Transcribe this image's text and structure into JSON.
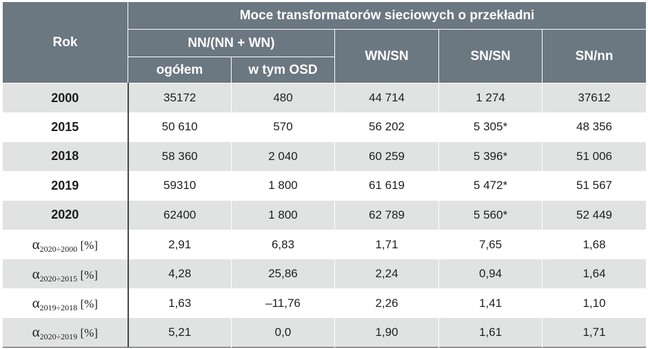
{
  "header": {
    "rok": "Rok",
    "main_title": "Moce transformatorów sieciowych o przekładni",
    "group_nn": "NN/(NN + WN)",
    "ogolem": "ogółem",
    "w_tym_osd": "w tym OSD",
    "wn_sn": "WN/SN",
    "sn_sn": "SN/SN",
    "sn_nn": "SN/nn"
  },
  "rows": [
    {
      "label": "2000",
      "ogolem": "35172",
      "osd": "480",
      "wn_sn": "44 714",
      "sn_sn": "1 274",
      "sn_nn": "37612"
    },
    {
      "label": "2015",
      "ogolem": "50 610",
      "osd": "570",
      "wn_sn": "56 202",
      "sn_sn": "5 305*",
      "sn_nn": "48 356"
    },
    {
      "label": "2018",
      "ogolem": "58 360",
      "osd": "2 040",
      "wn_sn": "60 259",
      "sn_sn": "5 396*",
      "sn_nn": "51 006"
    },
    {
      "label": "2019",
      "ogolem": "59310",
      "osd": "1 800",
      "wn_sn": "61 619",
      "sn_sn": "5 472*",
      "sn_nn": "51 567"
    },
    {
      "label": "2020",
      "ogolem": "62400",
      "osd": "1 800",
      "wn_sn": "62 789",
      "sn_sn": "5 560*",
      "sn_nn": "52 449"
    }
  ],
  "alpha_rows": [
    {
      "symbol": "α",
      "subscript": "2020÷2000",
      "unit": "[%]",
      "ogolem": "2,91",
      "osd": "6,83",
      "wn_sn": "1,71",
      "sn_sn": "7,65",
      "sn_nn": "1,68"
    },
    {
      "symbol": "α",
      "subscript": "2020÷2015",
      "unit": "[%]",
      "ogolem": "4,28",
      "osd": "25,86",
      "wn_sn": "2,24",
      "sn_sn": "0,94",
      "sn_nn": "1,64"
    },
    {
      "symbol": "α",
      "subscript": "2019÷2018",
      "unit": "[%]",
      "ogolem": "1,63",
      "osd": "–11,76",
      "wn_sn": "2,26",
      "sn_sn": "1,41",
      "sn_nn": "1,10"
    },
    {
      "symbol": "α",
      "subscript": "2020÷2019",
      "unit": "[%]",
      "ogolem": "5,21",
      "osd": "0,0",
      "wn_sn": "1,90",
      "sn_sn": "1,61",
      "sn_nn": "1,71"
    }
  ]
}
